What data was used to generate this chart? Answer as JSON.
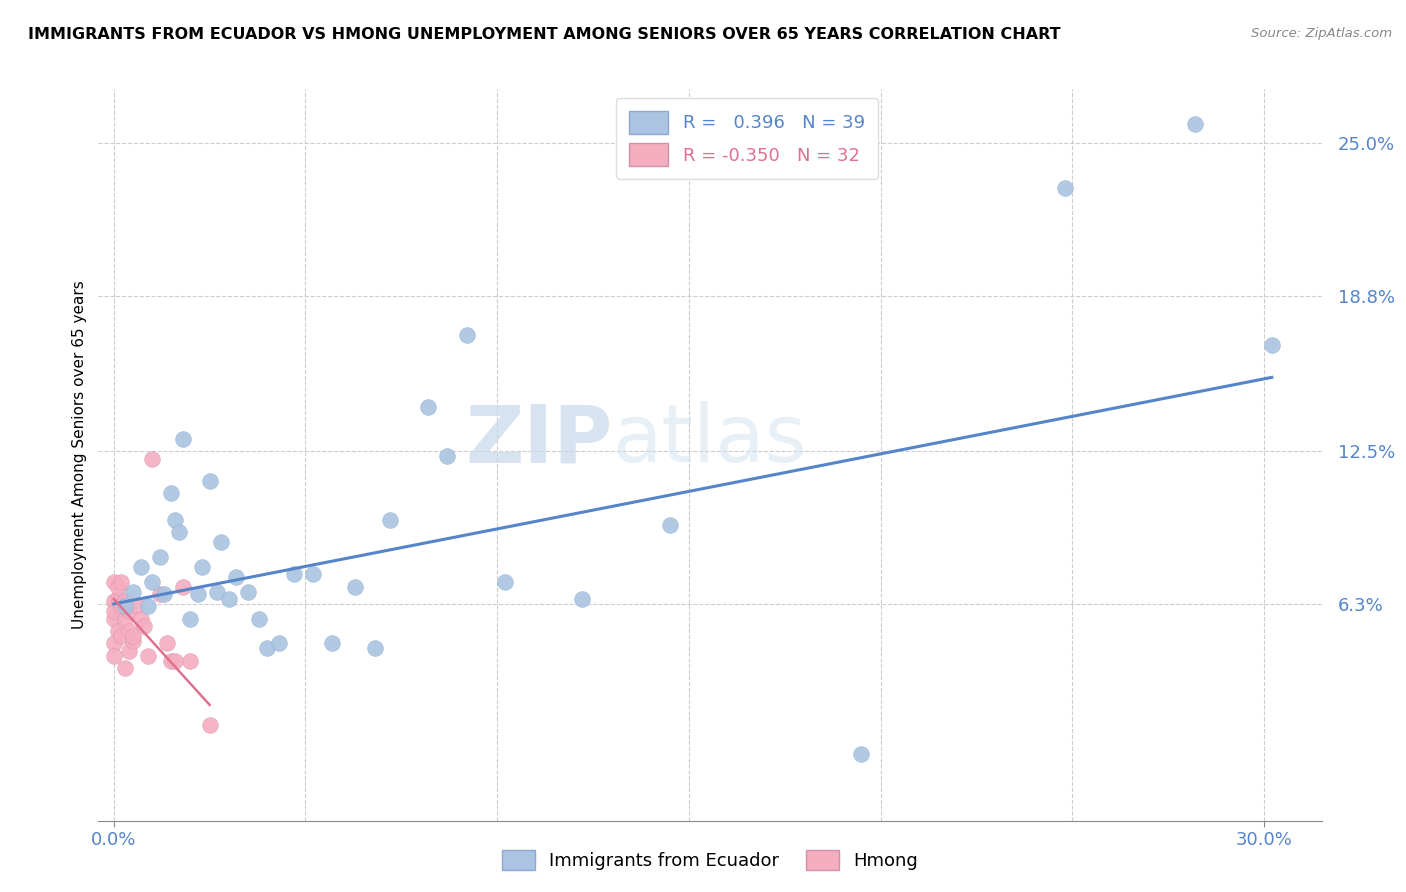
{
  "title": "IMMIGRANTS FROM ECUADOR VS HMONG UNEMPLOYMENT AMONG SENIORS OVER 65 YEARS CORRELATION CHART",
  "source": "Source: ZipAtlas.com",
  "xlabel_blue": "Immigrants from Ecuador",
  "xlabel_pink": "Hmong",
  "ylabel": "Unemployment Among Seniors over 65 years",
  "y_tick_labels": [
    "6.3%",
    "12.5%",
    "18.8%",
    "25.0%"
  ],
  "y_ticks": [
    0.063,
    0.125,
    0.188,
    0.25
  ],
  "xlim": [
    -0.004,
    0.315
  ],
  "ylim": [
    -0.025,
    0.272
  ],
  "legend_r_blue": "R =   0.396",
  "legend_n_blue": "N = 39",
  "legend_r_pink": "R = -0.350",
  "legend_n_pink": "N = 32",
  "blue_color": "#aac4e2",
  "pink_color": "#f5adc0",
  "line_blue_color": "#5585c8",
  "line_pink_color": "#e07090",
  "tick_color": "#5585c8",
  "watermark_zip": "ZIP",
  "watermark_atlas": "atlas",
  "blue_scatter_x": [
    0.003,
    0.005,
    0.007,
    0.009,
    0.01,
    0.012,
    0.013,
    0.015,
    0.016,
    0.017,
    0.018,
    0.02,
    0.022,
    0.023,
    0.025,
    0.027,
    0.028,
    0.03,
    0.032,
    0.035,
    0.038,
    0.04,
    0.043,
    0.047,
    0.052,
    0.057,
    0.063,
    0.068,
    0.072,
    0.082,
    0.087,
    0.092,
    0.102,
    0.122,
    0.145,
    0.195,
    0.248,
    0.282,
    0.302
  ],
  "blue_scatter_y": [
    0.062,
    0.068,
    0.078,
    0.062,
    0.072,
    0.082,
    0.067,
    0.108,
    0.097,
    0.092,
    0.13,
    0.057,
    0.067,
    0.078,
    0.113,
    0.068,
    0.088,
    0.065,
    0.074,
    0.068,
    0.057,
    0.045,
    0.047,
    0.075,
    0.075,
    0.047,
    0.07,
    0.045,
    0.097,
    0.143,
    0.123,
    0.172,
    0.072,
    0.065,
    0.095,
    0.002,
    0.232,
    0.258,
    0.168
  ],
  "pink_scatter_x": [
    0.0,
    0.0,
    0.0,
    0.0,
    0.0,
    0.0,
    0.001,
    0.001,
    0.001,
    0.002,
    0.002,
    0.002,
    0.003,
    0.003,
    0.003,
    0.004,
    0.004,
    0.004,
    0.005,
    0.005,
    0.006,
    0.007,
    0.008,
    0.009,
    0.01,
    0.012,
    0.014,
    0.015,
    0.016,
    0.018,
    0.02,
    0.025
  ],
  "pink_scatter_y": [
    0.057,
    0.064,
    0.072,
    0.06,
    0.047,
    0.042,
    0.065,
    0.07,
    0.052,
    0.062,
    0.072,
    0.05,
    0.057,
    0.064,
    0.037,
    0.052,
    0.06,
    0.044,
    0.048,
    0.05,
    0.062,
    0.057,
    0.054,
    0.042,
    0.122,
    0.067,
    0.047,
    0.04,
    0.04,
    0.07,
    0.04,
    0.014
  ],
  "blue_line_x": [
    0.0,
    0.302
  ],
  "blue_line_y": [
    0.063,
    0.155
  ],
  "pink_line_x": [
    0.0,
    0.025
  ],
  "pink_line_y": [
    0.065,
    0.022
  ],
  "grid_x": [
    0.0,
    0.05,
    0.1,
    0.15,
    0.2,
    0.25,
    0.3
  ],
  "bottom_tick_x": [
    0.0,
    0.05,
    0.1,
    0.15,
    0.2,
    0.25,
    0.3
  ],
  "figsize": [
    14.06,
    8.92
  ]
}
